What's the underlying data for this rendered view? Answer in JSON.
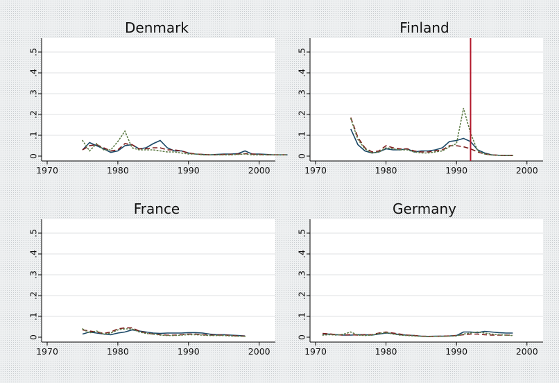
{
  "colors": {
    "series1": "#1a4766",
    "series2": "#7f1d1d",
    "series3": "#5e7c47",
    "ref_line": "#b2182b"
  },
  "chart_data": [
    {
      "type": "line",
      "title": "Denmark",
      "xlim": [
        1970,
        2000
      ],
      "ylim": [
        0,
        0.5
      ],
      "xticks": [
        1970,
        1980,
        1990,
        2000
      ],
      "yticks": [
        0,
        0.1,
        0.2,
        0.3,
        0.4,
        0.5
      ],
      "xtick_labels": [
        "1970",
        "1980",
        "1990",
        "2000"
      ],
      "ytick_labels": [
        "0",
        ".1",
        ".2",
        ".3",
        ".4",
        ".5"
      ],
      "grid": true,
      "series": [
        {
          "style": "solid",
          "x": [
            1975,
            1976,
            1977,
            1978,
            1979,
            1980,
            1981,
            1982,
            1983,
            1984,
            1985,
            1986,
            1987,
            1988,
            1989,
            1990,
            1991,
            1992,
            1993,
            1994,
            1995,
            1996,
            1997,
            1998,
            1999,
            2000,
            2001,
            2002,
            2003,
            2004
          ],
          "y": [
            0.03,
            0.065,
            0.05,
            0.035,
            0.018,
            0.025,
            0.05,
            0.055,
            0.035,
            0.04,
            0.06,
            0.075,
            0.04,
            0.025,
            0.025,
            0.015,
            0.01,
            0.008,
            0.006,
            0.008,
            0.01,
            0.01,
            0.012,
            0.025,
            0.01,
            0.01,
            0.008,
            0.006,
            0.006,
            0.006
          ]
        },
        {
          "style": "dash",
          "x": [
            1975,
            1976,
            1977,
            1978,
            1979,
            1980,
            1981,
            1982,
            1983,
            1984,
            1985,
            1986,
            1987,
            1988,
            1989,
            1990,
            1991,
            1992,
            1993,
            1994,
            1995,
            1996,
            1997,
            1998,
            1999,
            2000,
            2001,
            2002,
            2003,
            2004
          ],
          "y": [
            0.03,
            0.05,
            0.055,
            0.04,
            0.025,
            0.03,
            0.06,
            0.055,
            0.035,
            0.035,
            0.04,
            0.04,
            0.03,
            0.03,
            0.025,
            0.015,
            0.01,
            0.008,
            0.006,
            0.006,
            0.008,
            0.008,
            0.01,
            0.012,
            0.01,
            0.008,
            0.006,
            0.006,
            0.006,
            0.006
          ]
        },
        {
          "style": "dot",
          "x": [
            1975,
            1976,
            1977,
            1978,
            1979,
            1980,
            1981,
            1982,
            1983,
            1984,
            1985,
            1986,
            1987,
            1988,
            1989,
            1990,
            1991,
            1992,
            1993,
            1994,
            1995,
            1996,
            1997,
            1998,
            1999,
            2000,
            2001,
            2002,
            2003,
            2004
          ],
          "y": [
            0.075,
            0.025,
            0.06,
            0.03,
            0.03,
            0.07,
            0.12,
            0.04,
            0.03,
            0.03,
            0.03,
            0.025,
            0.02,
            0.02,
            0.015,
            0.01,
            0.01,
            0.006,
            0.006,
            0.006,
            0.006,
            0.006,
            0.008,
            0.01,
            0.006,
            0.006,
            0.006,
            0.006,
            0.006,
            0.006
          ]
        }
      ]
    },
    {
      "type": "line",
      "title": "Finland",
      "xlim": [
        1970,
        2000
      ],
      "ylim": [
        0,
        0.5
      ],
      "xticks": [
        1970,
        1980,
        1990,
        2000
      ],
      "yticks": [
        0,
        0.1,
        0.2,
        0.3,
        0.4,
        0.5
      ],
      "xtick_labels": [
        "1970",
        "1980",
        "1990",
        "2000"
      ],
      "ytick_labels": [
        "0",
        ".1",
        ".2",
        ".3",
        ".4",
        ".5"
      ],
      "grid": true,
      "vline": 1992,
      "series": [
        {
          "style": "solid",
          "x": [
            1975,
            1976,
            1977,
            1978,
            1979,
            1980,
            1981,
            1982,
            1983,
            1984,
            1985,
            1986,
            1987,
            1988,
            1989,
            1990,
            1991,
            1992,
            1993,
            1994,
            1995,
            1996,
            1997,
            1998
          ],
          "y": [
            0.13,
            0.055,
            0.025,
            0.015,
            0.02,
            0.035,
            0.03,
            0.03,
            0.035,
            0.02,
            0.025,
            0.025,
            0.03,
            0.04,
            0.07,
            0.075,
            0.085,
            0.07,
            0.03,
            0.015,
            0.006,
            0.004,
            0.003,
            0.003
          ]
        },
        {
          "style": "dash",
          "x": [
            1975,
            1976,
            1977,
            1978,
            1979,
            1980,
            1981,
            1982,
            1983,
            1984,
            1985,
            1986,
            1987,
            1988,
            1989,
            1990,
            1991,
            1992,
            1993,
            1994,
            1995,
            1996,
            1997,
            1998
          ],
          "y": [
            0.185,
            0.09,
            0.04,
            0.02,
            0.025,
            0.05,
            0.04,
            0.035,
            0.035,
            0.025,
            0.02,
            0.02,
            0.025,
            0.03,
            0.05,
            0.05,
            0.045,
            0.035,
            0.02,
            0.01,
            0.006,
            0.004,
            0.003,
            0.003
          ]
        },
        {
          "style": "dot",
          "x": [
            1975,
            1976,
            1977,
            1978,
            1979,
            1980,
            1981,
            1982,
            1983,
            1984,
            1985,
            1986,
            1987,
            1988,
            1989,
            1990,
            1991,
            1992,
            1993,
            1994,
            1995,
            1996,
            1997,
            1998
          ],
          "y": [
            0.18,
            0.08,
            0.035,
            0.015,
            0.02,
            0.04,
            0.035,
            0.03,
            0.03,
            0.02,
            0.015,
            0.015,
            0.02,
            0.025,
            0.045,
            0.06,
            0.23,
            0.11,
            0.025,
            0.01,
            0.005,
            0.004,
            0.003,
            0.003
          ]
        }
      ]
    },
    {
      "type": "line",
      "title": "France",
      "xlim": [
        1970,
        2000
      ],
      "ylim": [
        0,
        0.5
      ],
      "xticks": [
        1970,
        1980,
        1990,
        2000
      ],
      "yticks": [
        0,
        0.1,
        0.2,
        0.3,
        0.4,
        0.5
      ],
      "xtick_labels": [
        "1970",
        "1980",
        "1990",
        "2000"
      ],
      "ytick_labels": [
        "0",
        ".1",
        ".2",
        ".3",
        ".4",
        ".5"
      ],
      "grid": true,
      "series": [
        {
          "style": "solid",
          "x": [
            1975,
            1976,
            1977,
            1978,
            1979,
            1980,
            1981,
            1982,
            1983,
            1984,
            1985,
            1986,
            1987,
            1988,
            1989,
            1990,
            1991,
            1992,
            1993,
            1994,
            1995,
            1996,
            1997,
            1998
          ],
          "y": [
            0.015,
            0.025,
            0.02,
            0.015,
            0.012,
            0.02,
            0.025,
            0.035,
            0.03,
            0.025,
            0.02,
            0.018,
            0.02,
            0.02,
            0.02,
            0.022,
            0.022,
            0.02,
            0.015,
            0.012,
            0.012,
            0.01,
            0.008,
            0.006
          ]
        },
        {
          "style": "dash",
          "x": [
            1975,
            1976,
            1977,
            1978,
            1979,
            1980,
            1981,
            1982,
            1983,
            1984,
            1985,
            1986,
            1987,
            1988,
            1989,
            1990,
            1991,
            1992,
            1993,
            1994,
            1995,
            1996,
            1997,
            1998
          ],
          "y": [
            0.035,
            0.03,
            0.025,
            0.018,
            0.025,
            0.04,
            0.045,
            0.045,
            0.03,
            0.02,
            0.015,
            0.012,
            0.01,
            0.01,
            0.012,
            0.015,
            0.015,
            0.012,
            0.01,
            0.01,
            0.01,
            0.008,
            0.006,
            0.005
          ]
        },
        {
          "style": "dot",
          "x": [
            1975,
            1976,
            1977,
            1978,
            1979,
            1980,
            1981,
            1982,
            1983,
            1984,
            1985,
            1986,
            1987,
            1988,
            1989,
            1990,
            1991,
            1992,
            1993,
            1994,
            1995,
            1996,
            1997,
            1998
          ],
          "y": [
            0.04,
            0.02,
            0.03,
            0.015,
            0.02,
            0.035,
            0.04,
            0.04,
            0.025,
            0.018,
            0.015,
            0.01,
            0.008,
            0.008,
            0.01,
            0.012,
            0.012,
            0.01,
            0.008,
            0.008,
            0.008,
            0.006,
            0.005,
            0.004
          ]
        }
      ]
    },
    {
      "type": "line",
      "title": "Germany",
      "xlim": [
        1970,
        2000
      ],
      "ylim": [
        0,
        0.5
      ],
      "xticks": [
        1970,
        1980,
        1990,
        2000
      ],
      "yticks": [
        0,
        0.1,
        0.2,
        0.3,
        0.4,
        0.5
      ],
      "xtick_labels": [
        "1970",
        "1980",
        "1990",
        "2000"
      ],
      "ytick_labels": [
        "0",
        ".1",
        ".2",
        ".3",
        ".4",
        ".5"
      ],
      "grid": true,
      "series": [
        {
          "style": "solid",
          "x": [
            1971,
            1972,
            1973,
            1974,
            1975,
            1976,
            1977,
            1978,
            1979,
            1980,
            1981,
            1982,
            1983,
            1984,
            1985,
            1986,
            1987,
            1988,
            1989,
            1990,
            1991,
            1992,
            1993,
            1994,
            1995,
            1996,
            1997,
            1998
          ],
          "y": [
            0.015,
            0.015,
            0.012,
            0.01,
            0.01,
            0.012,
            0.012,
            0.01,
            0.015,
            0.02,
            0.018,
            0.012,
            0.01,
            0.008,
            0.005,
            0.004,
            0.005,
            0.005,
            0.006,
            0.008,
            0.025,
            0.025,
            0.022,
            0.028,
            0.025,
            0.022,
            0.02,
            0.02
          ]
        },
        {
          "style": "dash",
          "x": [
            1971,
            1972,
            1973,
            1974,
            1975,
            1976,
            1977,
            1978,
            1979,
            1980,
            1981,
            1982,
            1983,
            1984,
            1985,
            1986,
            1987,
            1988,
            1989,
            1990,
            1991,
            1992,
            1993,
            1994,
            1995,
            1996,
            1997,
            1998
          ],
          "y": [
            0.018,
            0.016,
            0.012,
            0.01,
            0.012,
            0.01,
            0.012,
            0.012,
            0.02,
            0.025,
            0.02,
            0.015,
            0.01,
            0.008,
            0.005,
            0.004,
            0.004,
            0.005,
            0.006,
            0.008,
            0.012,
            0.015,
            0.015,
            0.012,
            0.01,
            0.01,
            0.01,
            0.01
          ]
        },
        {
          "style": "dot",
          "x": [
            1971,
            1972,
            1973,
            1974,
            1975,
            1976,
            1977,
            1978,
            1979,
            1980,
            1981,
            1982,
            1983,
            1984,
            1985,
            1986,
            1987,
            1988,
            1989,
            1990,
            1991,
            1992,
            1993,
            1994,
            1995,
            1996,
            1997,
            1998
          ],
          "y": [
            0.01,
            0.012,
            0.01,
            0.015,
            0.025,
            0.01,
            0.008,
            0.01,
            0.018,
            0.022,
            0.015,
            0.01,
            0.008,
            0.006,
            0.004,
            0.003,
            0.004,
            0.004,
            0.005,
            0.006,
            0.015,
            0.02,
            0.025,
            0.02,
            0.015,
            0.012,
            0.01,
            0.008
          ]
        }
      ]
    }
  ]
}
